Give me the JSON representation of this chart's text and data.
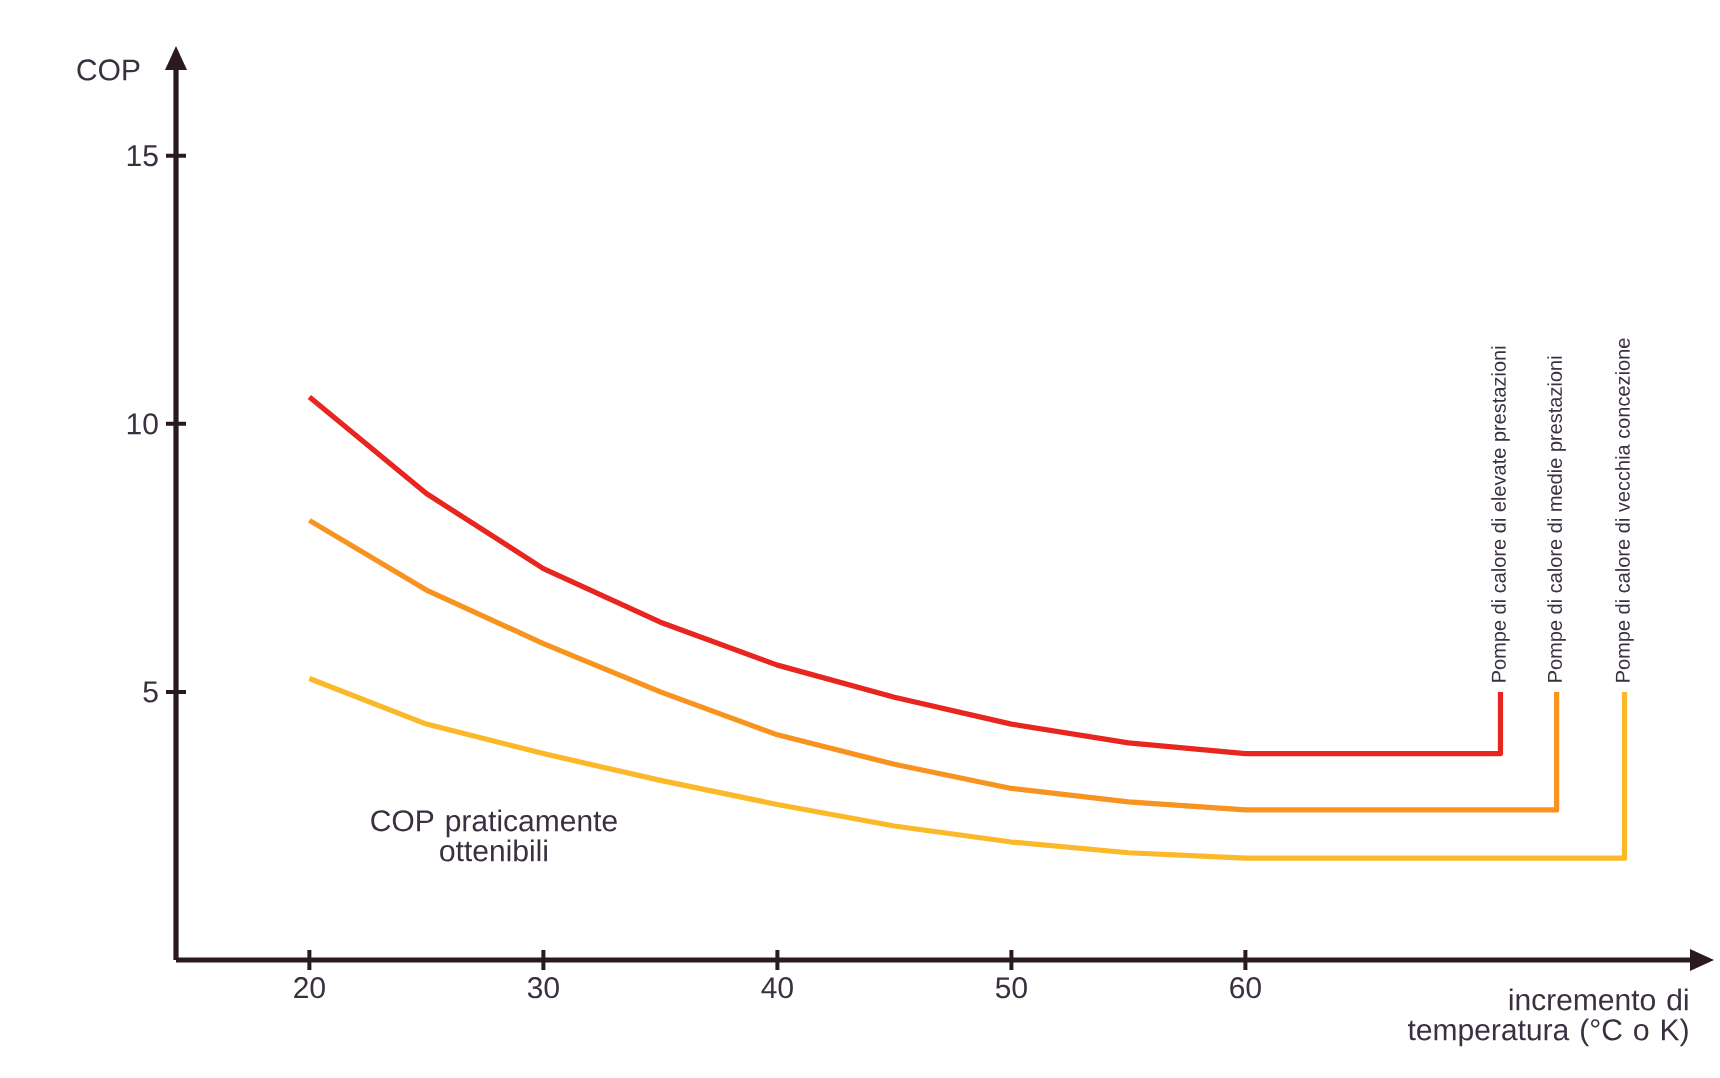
{
  "chart_data": {
    "type": "line",
    "xlabel": "incremento di temperatura (°C o K)",
    "ylabel": "COP",
    "xlim": [
      14.3,
      79
    ],
    "ylim": [
      0,
      16.6
    ],
    "xticks": [
      20,
      30,
      40,
      50,
      60
    ],
    "yticks": [
      5,
      10,
      15
    ],
    "grid": false,
    "series": [
      {
        "name": "Pompe di calore di elevate prestazioni",
        "color": "#e8261f",
        "x": [
          20,
          25,
          30,
          35,
          40,
          45,
          50,
          55,
          60,
          70.9,
          70.9
        ],
        "values": [
          10.5,
          8.7,
          7.3,
          6.3,
          5.5,
          4.9,
          4.4,
          4.05,
          3.85,
          3.85,
          5.0
        ]
      },
      {
        "name": "Pompe di calore di medie prestazioni",
        "color": "#f7931e",
        "x": [
          20,
          25,
          30,
          35,
          40,
          45,
          50,
          55,
          60,
          73.3,
          73.3
        ],
        "values": [
          8.2,
          6.9,
          5.9,
          5.0,
          4.2,
          3.65,
          3.2,
          2.95,
          2.8,
          2.8,
          5.0
        ]
      },
      {
        "name": "Pompe di calore di vecchia concezione",
        "color": "#fbb829",
        "x": [
          20,
          25,
          30,
          35,
          40,
          45,
          50,
          55,
          60,
          76.2,
          76.2
        ],
        "values": [
          5.25,
          4.4,
          3.85,
          3.35,
          2.9,
          2.5,
          2.2,
          2.0,
          1.9,
          1.9,
          5.0
        ]
      }
    ],
    "annotations": [
      "COP praticamente ottenibili"
    ]
  }
}
